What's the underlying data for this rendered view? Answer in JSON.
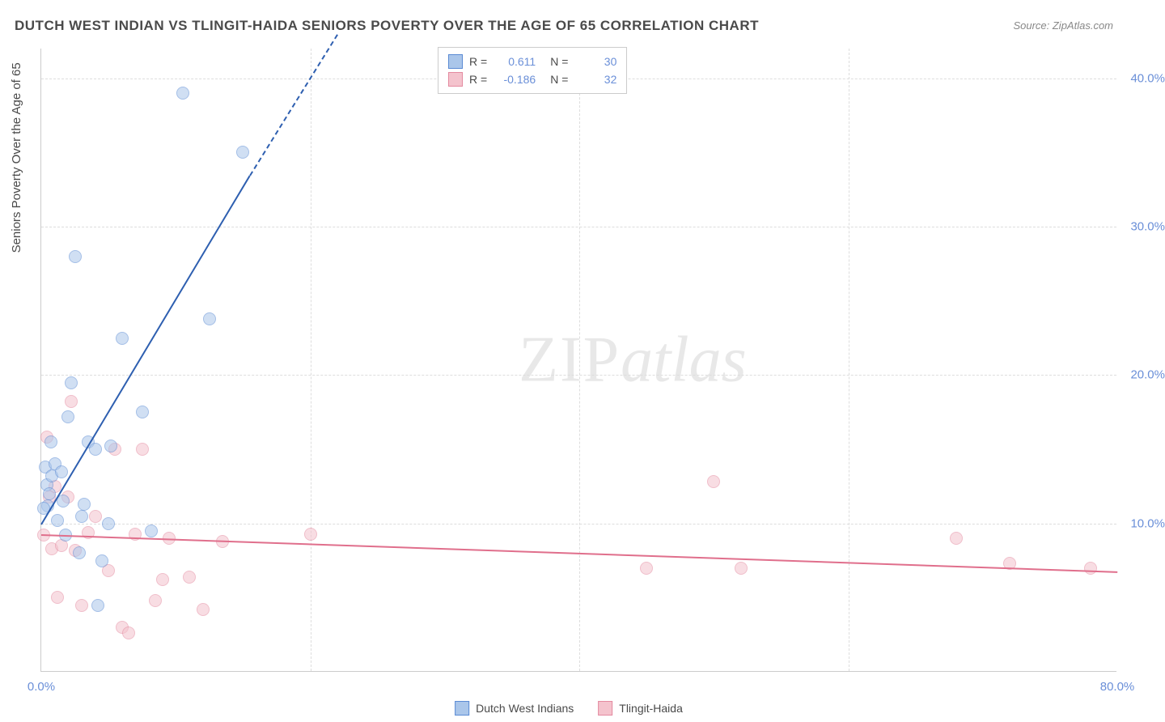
{
  "title": "DUTCH WEST INDIAN VS TLINGIT-HAIDA SENIORS POVERTY OVER THE AGE OF 65 CORRELATION CHART",
  "source": "Source: ZipAtlas.com",
  "y_axis_label": "Seniors Poverty Over the Age of 65",
  "watermark": {
    "part1": "ZIP",
    "part2": "atlas"
  },
  "chart": {
    "type": "scatter",
    "background_color": "#ffffff",
    "grid_color": "#dddddd",
    "axis_color": "#cccccc",
    "text_color": "#4a4a4a",
    "tick_label_color": "#6a8fd8",
    "xlim": [
      0,
      80
    ],
    "ylim": [
      0,
      42
    ],
    "xticks": [
      {
        "v": 0,
        "label": "0.0%"
      },
      {
        "v": 80,
        "label": "80.0%"
      }
    ],
    "xgrid": [
      20,
      40,
      60
    ],
    "yticks": [
      {
        "v": 10,
        "label": "10.0%"
      },
      {
        "v": 20,
        "label": "20.0%"
      },
      {
        "v": 30,
        "label": "30.0%"
      },
      {
        "v": 40,
        "label": "40.0%"
      }
    ],
    "marker_radius": 8,
    "marker_opacity": 0.55,
    "line_width": 2
  },
  "series": {
    "a": {
      "label": "Dutch West Indians",
      "fill": "#aac6ea",
      "stroke": "#5b8bd4",
      "line_color": "#2e5fb0",
      "points": [
        [
          0.3,
          13.8
        ],
        [
          0.4,
          12.6
        ],
        [
          0.5,
          11.2
        ],
        [
          0.6,
          12.0
        ],
        [
          0.7,
          15.5
        ],
        [
          0.8,
          13.2
        ],
        [
          1.0,
          14.0
        ],
        [
          1.2,
          10.2
        ],
        [
          1.6,
          11.5
        ],
        [
          1.8,
          9.2
        ],
        [
          2.0,
          17.2
        ],
        [
          2.2,
          19.5
        ],
        [
          2.5,
          28.0
        ],
        [
          3.0,
          10.5
        ],
        [
          3.2,
          11.3
        ],
        [
          3.5,
          15.5
        ],
        [
          4.0,
          15.0
        ],
        [
          4.2,
          4.5
        ],
        [
          5.0,
          10.0
        ],
        [
          5.2,
          15.2
        ],
        [
          6.0,
          22.5
        ],
        [
          7.5,
          17.5
        ],
        [
          8.2,
          9.5
        ],
        [
          10.5,
          39.0
        ],
        [
          12.5,
          23.8
        ],
        [
          15.0,
          35.0
        ],
        [
          2.8,
          8.0
        ],
        [
          4.5,
          7.5
        ],
        [
          0.2,
          11.0
        ],
        [
          1.5,
          13.5
        ]
      ],
      "trend": {
        "x1": 0,
        "y1": 10.0,
        "x2": 15.5,
        "y2": 33.5,
        "dash_to_x": 22,
        "dash_to_y": 43
      },
      "r": "0.611",
      "n": "30"
    },
    "b": {
      "label": "Tlingit-Haida",
      "fill": "#f4c3cd",
      "stroke": "#e48aa0",
      "line_color": "#e06f8c",
      "points": [
        [
          0.2,
          9.2
        ],
        [
          0.4,
          15.8
        ],
        [
          0.6,
          11.8
        ],
        [
          0.8,
          8.3
        ],
        [
          1.0,
          12.5
        ],
        [
          1.2,
          5.0
        ],
        [
          1.5,
          8.5
        ],
        [
          2.0,
          11.8
        ],
        [
          2.5,
          8.2
        ],
        [
          3.0,
          4.5
        ],
        [
          3.5,
          9.4
        ],
        [
          4.0,
          10.5
        ],
        [
          5.0,
          6.8
        ],
        [
          5.5,
          15.0
        ],
        [
          6.0,
          3.0
        ],
        [
          6.5,
          2.6
        ],
        [
          7.0,
          9.3
        ],
        [
          7.5,
          15.0
        ],
        [
          8.5,
          4.8
        ],
        [
          9.0,
          6.2
        ],
        [
          9.5,
          9.0
        ],
        [
          11.0,
          6.4
        ],
        [
          12.0,
          4.2
        ],
        [
          13.5,
          8.8
        ],
        [
          20.0,
          9.3
        ],
        [
          45.0,
          7.0
        ],
        [
          50.0,
          12.8
        ],
        [
          52.0,
          7.0
        ],
        [
          2.2,
          18.2
        ],
        [
          68.0,
          9.0
        ],
        [
          72.0,
          7.3
        ],
        [
          78.0,
          7.0
        ]
      ],
      "trend": {
        "x1": 0,
        "y1": 9.3,
        "x2": 80,
        "y2": 6.8
      },
      "r": "-0.186",
      "n": "32"
    }
  },
  "stats_box": {
    "r_label": "R  =",
    "n_label": "N  ="
  }
}
